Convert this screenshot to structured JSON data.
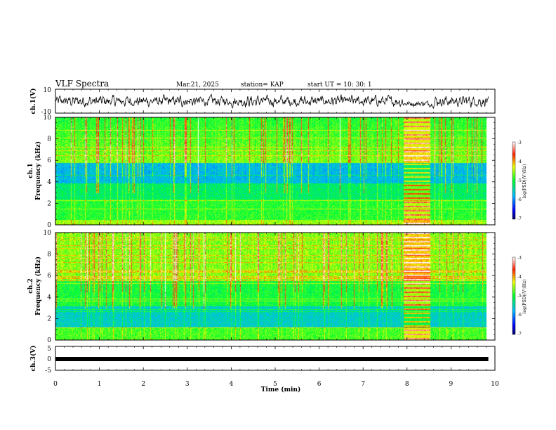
{
  "header": {
    "title": "VLF Spectra",
    "date": "Mar.21, 2025",
    "station": "station= KAP",
    "start_time": "start  UT  =   10: 30: 1"
  },
  "chart_data": [
    {
      "type": "line",
      "panel": "ch1-waveform",
      "ylabel": "ch.1(V)",
      "ylim": [
        -10,
        10
      ],
      "yticks": [
        "10",
        "-10"
      ],
      "xlim": [
        0,
        9.85
      ]
    },
    {
      "type": "heatmap",
      "panel": "ch1-spectrogram",
      "ylabel_lines": [
        "ch.1",
        "Frequency  (kHz)"
      ],
      "ylim": [
        0,
        10
      ],
      "yticks": [
        "0",
        "2",
        "4",
        "6",
        "8",
        "10"
      ],
      "xlim": [
        0,
        9.85
      ],
      "colorbar": {
        "label": "log(PSD)(V²/Hz)",
        "range": [
          -7,
          -3
        ],
        "ticks": [
          "-3",
          "-4",
          "-5",
          "-6",
          "-7"
        ]
      },
      "bright_band_minutes": [
        7.95,
        8.55
      ]
    },
    {
      "type": "heatmap",
      "panel": "ch2-spectrogram",
      "ylabel_lines": [
        "ch.2",
        "Frequency  (kHz)"
      ],
      "ylim": [
        0,
        10
      ],
      "yticks": [
        "0",
        "2",
        "4",
        "6",
        "8",
        "10"
      ],
      "xlim": [
        0,
        9.85
      ],
      "colorbar": {
        "label": "log(PSD)(V²/Hz)",
        "range": [
          -7,
          -3
        ],
        "ticks": [
          "-3",
          "-4",
          "-5",
          "-6",
          "-7"
        ]
      },
      "bright_band_minutes": [
        7.95,
        8.55
      ]
    },
    {
      "type": "line",
      "panel": "ch3-waveform",
      "ylabel": "ch.3(V)",
      "ylim": [
        -5,
        5
      ],
      "yticks": [
        "5",
        "0",
        "-5"
      ],
      "constant_value_approx": -0.3,
      "xlim": [
        0,
        9.85
      ]
    }
  ],
  "xaxis": {
    "label": "Time  (min)",
    "ticks": [
      "0",
      "1",
      "2",
      "3",
      "4",
      "5",
      "6",
      "7",
      "8",
      "9",
      "10"
    ],
    "range": [
      0,
      10
    ]
  }
}
